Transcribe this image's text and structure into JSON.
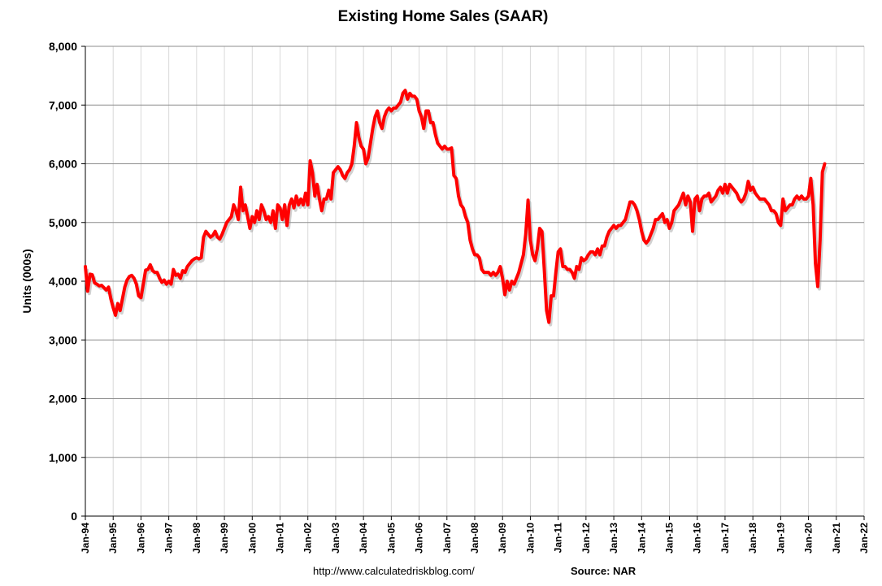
{
  "chart_data": {
    "type": "line",
    "title": "Existing Home Sales (SAAR)",
    "ylabel": "Units (000s)",
    "annotations": [
      "http://www.calculatedriskblog.com/",
      "Source: NAR"
    ],
    "categories": [
      "Jan-94",
      null,
      null,
      null,
      null,
      null,
      null,
      null,
      null,
      null,
      null,
      null,
      "Jan-95",
      null,
      null,
      null,
      null,
      null,
      null,
      null,
      null,
      null,
      null,
      null,
      "Jan-96",
      null,
      null,
      null,
      null,
      null,
      null,
      null,
      null,
      null,
      null,
      null,
      "Jan-97",
      null,
      null,
      null,
      null,
      null,
      null,
      null,
      null,
      null,
      null,
      null,
      "Jan-98",
      null,
      null,
      null,
      null,
      null,
      null,
      null,
      null,
      null,
      null,
      null,
      "Jan-99",
      null,
      null,
      null,
      null,
      null,
      null,
      null,
      null,
      null,
      null,
      null,
      "Jan-00",
      null,
      null,
      null,
      null,
      null,
      null,
      null,
      null,
      null,
      null,
      null,
      "Jan-01",
      null,
      null,
      null,
      null,
      null,
      null,
      null,
      null,
      null,
      null,
      null,
      "Jan-02",
      null,
      null,
      null,
      null,
      null,
      null,
      null,
      null,
      null,
      null,
      null,
      "Jan-03",
      null,
      null,
      null,
      null,
      null,
      null,
      null,
      null,
      null,
      null,
      null,
      "Jan-04",
      null,
      null,
      null,
      null,
      null,
      null,
      null,
      null,
      null,
      null,
      null,
      "Jan-05",
      null,
      null,
      null,
      null,
      null,
      null,
      null,
      null,
      null,
      null,
      null,
      "Jan-06",
      null,
      null,
      null,
      null,
      null,
      null,
      null,
      null,
      null,
      null,
      null,
      "Jan-07",
      null,
      null,
      null,
      null,
      null,
      null,
      null,
      null,
      null,
      null,
      null,
      "Jan-08",
      null,
      null,
      null,
      null,
      null,
      null,
      null,
      null,
      null,
      null,
      null,
      "Jan-09",
      null,
      null,
      null,
      null,
      null,
      null,
      null,
      null,
      null,
      null,
      null,
      "Jan-10",
      null,
      null,
      null,
      null,
      null,
      null,
      null,
      null,
      null,
      null,
      null,
      "Jan-11",
      null,
      null,
      null,
      null,
      null,
      null,
      null,
      null,
      null,
      null,
      null,
      "Jan-12",
      null,
      null,
      null,
      null,
      null,
      null,
      null,
      null,
      null,
      null,
      null,
      "Jan-13",
      null,
      null,
      null,
      null,
      null,
      null,
      null,
      null,
      null,
      null,
      null,
      "Jan-14",
      null,
      null,
      null,
      null,
      null,
      null,
      null,
      null,
      null,
      null,
      null,
      "Jan-15",
      null,
      null,
      null,
      null,
      null,
      null,
      null,
      null,
      null,
      null,
      null,
      "Jan-16",
      null,
      null,
      null,
      null,
      null,
      null,
      null,
      null,
      null,
      null,
      null,
      "Jan-17",
      null,
      null,
      null,
      null,
      null,
      null,
      null,
      null,
      null,
      null,
      null,
      "Jan-18",
      null,
      null,
      null,
      null,
      null,
      null,
      null,
      null,
      null,
      null,
      null,
      "Jan-19",
      null,
      null,
      null,
      null,
      null,
      null,
      null,
      null,
      null,
      null,
      null,
      "Jan-20",
      null,
      null,
      null,
      null,
      null,
      null,
      null,
      null,
      null,
      null,
      null,
      "Jan-21",
      null,
      null,
      null,
      null,
      null,
      null,
      null,
      null,
      null,
      null,
      null,
      "Jan-22"
    ],
    "series": [
      {
        "name": "Existing Home Sales",
        "color": "#ff0000",
        "values": [
          4250,
          3830,
          4120,
          4110,
          3970,
          3950,
          3920,
          3930,
          3890,
          3850,
          3900,
          3700,
          3550,
          3420,
          3620,
          3500,
          3700,
          3900,
          4020,
          4080,
          4100,
          4050,
          3950,
          3750,
          3720,
          3950,
          4190,
          4200,
          4280,
          4180,
          4150,
          4150,
          4050,
          3980,
          4020,
          3950,
          4000,
          3950,
          4200,
          4100,
          4120,
          4050,
          4180,
          4150,
          4250,
          4300,
          4350,
          4380,
          4400,
          4380,
          4400,
          4750,
          4850,
          4800,
          4750,
          4780,
          4850,
          4750,
          4720,
          4800,
          4900,
          5000,
          5050,
          5100,
          5300,
          5200,
          5050,
          5600,
          5200,
          5300,
          5100,
          4900,
          5100,
          5000,
          5200,
          5050,
          5300,
          5200,
          5050,
          5100,
          5000,
          5200,
          4900,
          5300,
          5250,
          5050,
          5300,
          4950,
          5300,
          5400,
          5250,
          5450,
          5300,
          5400,
          5300,
          5500,
          5300,
          6050,
          5850,
          5450,
          5650,
          5400,
          5200,
          5400,
          5400,
          5550,
          5400,
          5850,
          5900,
          5950,
          5900,
          5800,
          5750,
          5850,
          5900,
          6000,
          6300,
          6700,
          6450,
          6300,
          6250,
          6000,
          6100,
          6350,
          6600,
          6800,
          6900,
          6700,
          6600,
          6800,
          6900,
          6950,
          6900,
          6950,
          6950,
          7000,
          7050,
          7200,
          7250,
          7100,
          7200,
          7150,
          7150,
          7100,
          6900,
          6800,
          6600,
          6900,
          6900,
          6700,
          6700,
          6500,
          6350,
          6300,
          6250,
          6300,
          6250,
          6250,
          6270,
          5800,
          5750,
          5450,
          5300,
          5250,
          5100,
          5000,
          4700,
          4550,
          4450,
          4450,
          4400,
          4200,
          4150,
          4150,
          4150,
          4100,
          4150,
          4100,
          4150,
          4250,
          4050,
          3770,
          4000,
          3850,
          4000,
          3950,
          4050,
          4150,
          4300,
          4450,
          4800,
          5380,
          4700,
          4450,
          4350,
          4550,
          4900,
          4850,
          4200,
          3500,
          3300,
          3750,
          3750,
          4150,
          4500,
          4550,
          4250,
          4250,
          4200,
          4200,
          4150,
          4050,
          4250,
          4200,
          4400,
          4350,
          4380,
          4450,
          4500,
          4500,
          4450,
          4550,
          4450,
          4600,
          4600,
          4750,
          4850,
          4900,
          4950,
          4900,
          4950,
          4950,
          5000,
          5050,
          5200,
          5350,
          5350,
          5300,
          5200,
          5050,
          4850,
          4700,
          4650,
          4700,
          4800,
          4900,
          5050,
          5050,
          5100,
          5150,
          5000,
          5050,
          4900,
          5000,
          5200,
          5250,
          5300,
          5400,
          5500,
          5300,
          5450,
          5350,
          4850,
          5400,
          5450,
          5200,
          5400,
          5450,
          5450,
          5500,
          5350,
          5400,
          5450,
          5550,
          5600,
          5500,
          5650,
          5500,
          5650,
          5600,
          5550,
          5500,
          5400,
          5350,
          5400,
          5500,
          5700,
          5550,
          5600,
          5500,
          5450,
          5400,
          5400,
          5400,
          5350,
          5300,
          5200,
          5200,
          5150,
          5000,
          4950,
          5400,
          5200,
          5250,
          5300,
          5300,
          5400,
          5450,
          5400,
          5450,
          5400,
          5400,
          5450,
          5750,
          5300,
          4300,
          3910,
          4700,
          5860,
          6000,
          null,
          null,
          null,
          null,
          null,
          null,
          null,
          null,
          null,
          null,
          null,
          null,
          null,
          null,
          null,
          null,
          null
        ]
      }
    ],
    "ylim": [
      0,
      8000
    ],
    "yticks": [
      0,
      {
        "value": 1000,
        "label": "1,000"
      },
      {
        "value": 2000,
        "label": "2,000"
      },
      {
        "value": 3000,
        "label": "3,000"
      },
      {
        "value": 4000,
        "label": "4,000"
      },
      {
        "value": 5000,
        "label": "5,000"
      },
      {
        "value": 6000,
        "label": "6,000"
      },
      {
        "value": 7000,
        "label": "7,000"
      },
      {
        "value": 8000,
        "label": "8,000"
      }
    ],
    "grid": true
  }
}
